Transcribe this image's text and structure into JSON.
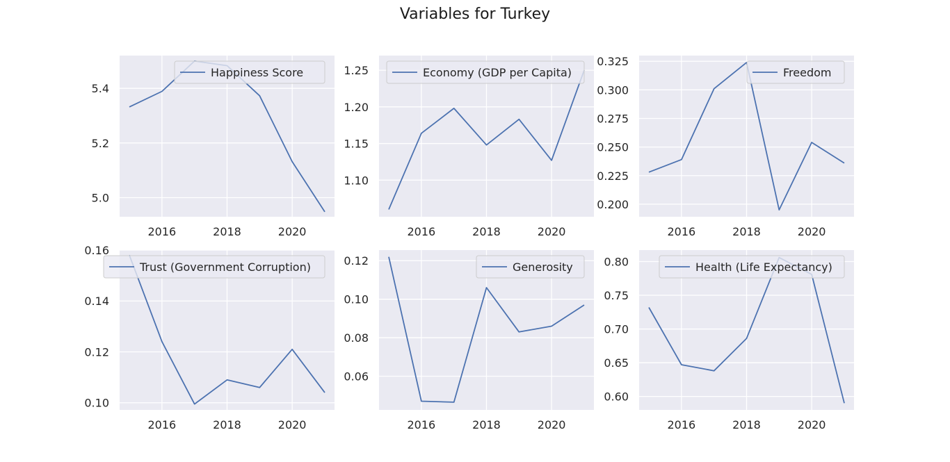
{
  "figure": {
    "title": "Variables for Turkey"
  },
  "colors": {
    "background": "#eaeaf2",
    "grid": "#ffffff",
    "line": "#4c72b0",
    "text": "#262626"
  },
  "chart_data": [
    {
      "type": "line",
      "title": "",
      "x": [
        2015,
        2016,
        2017,
        2018,
        2019,
        2020,
        2021
      ],
      "series": [
        {
          "name": "Happiness Score",
          "values": [
            5.332,
            5.389,
            5.5,
            5.483,
            5.373,
            5.132,
            4.948
          ]
        }
      ],
      "xlim": [
        2014.7,
        2021.3
      ],
      "ylim": [
        4.93,
        5.52
      ],
      "xticks": [
        2016,
        2018,
        2020
      ],
      "xtick_labels": [
        "2016",
        "2018",
        "2020"
      ],
      "yticks": [
        5.0,
        5.2,
        5.4
      ],
      "ytick_labels": [
        "5.0",
        "5.2",
        "5.4"
      ],
      "legend": "upper right",
      "grid": true
    },
    {
      "type": "line",
      "title": "",
      "x": [
        2015,
        2016,
        2017,
        2018,
        2019,
        2020,
        2021
      ],
      "series": [
        {
          "name": "Economy (GDP per Capita)",
          "values": [
            1.06,
            1.164,
            1.198,
            1.148,
            1.183,
            1.127,
            1.25
          ]
        }
      ],
      "xlim": [
        2014.7,
        2021.3
      ],
      "ylim": [
        1.05,
        1.27
      ],
      "xticks": [
        2016,
        2018,
        2020
      ],
      "xtick_labels": [
        "2016",
        "2018",
        "2020"
      ],
      "yticks": [
        1.1,
        1.15,
        1.2,
        1.25
      ],
      "ytick_labels": [
        "1.10",
        "1.15",
        "1.20",
        "1.25"
      ],
      "legend": "upper right",
      "grid": true
    },
    {
      "type": "line",
      "title": "",
      "x": [
        2015,
        2016,
        2017,
        2018,
        2019,
        2020,
        2021
      ],
      "series": [
        {
          "name": "Freedom",
          "values": [
            0.228,
            0.239,
            0.301,
            0.324,
            0.195,
            0.254,
            0.236
          ]
        }
      ],
      "xlim": [
        2014.7,
        2021.3
      ],
      "ylim": [
        0.189,
        0.33
      ],
      "xticks": [
        2016,
        2018,
        2020
      ],
      "xtick_labels": [
        "2016",
        "2018",
        "2020"
      ],
      "yticks": [
        0.2,
        0.225,
        0.25,
        0.275,
        0.3,
        0.325
      ],
      "ytick_labels": [
        "0.200",
        "0.225",
        "0.250",
        "0.275",
        "0.300",
        "0.325"
      ],
      "legend": "upper right",
      "grid": true
    },
    {
      "type": "line",
      "title": "",
      "x": [
        2015,
        2016,
        2017,
        2018,
        2019,
        2020,
        2021
      ],
      "series": [
        {
          "name": "Trust (Government Corruption)",
          "values": [
            0.158,
            0.124,
            0.0995,
            0.109,
            0.106,
            0.121,
            0.104
          ]
        }
      ],
      "xlim": [
        2014.7,
        2021.3
      ],
      "ylim": [
        0.0972,
        0.16
      ],
      "xticks": [
        2016,
        2018,
        2020
      ],
      "xtick_labels": [
        "2016",
        "2018",
        "2020"
      ],
      "yticks": [
        0.1,
        0.12,
        0.14,
        0.16
      ],
      "ytick_labels": [
        "0.10",
        "0.12",
        "0.14",
        "0.16"
      ],
      "legend": "upper right",
      "grid": true
    },
    {
      "type": "line",
      "title": "",
      "x": [
        2015,
        2016,
        2017,
        2018,
        2019,
        2020,
        2021
      ],
      "series": [
        {
          "name": "Generosity",
          "values": [
            0.122,
            0.047,
            0.0465,
            0.106,
            0.083,
            0.086,
            0.097
          ]
        }
      ],
      "xlim": [
        2014.7,
        2021.3
      ],
      "ylim": [
        0.0425,
        0.1255
      ],
      "xticks": [
        2016,
        2018,
        2020
      ],
      "xtick_labels": [
        "2016",
        "2018",
        "2020"
      ],
      "yticks": [
        0.06,
        0.08,
        0.1,
        0.12
      ],
      "ytick_labels": [
        "0.06",
        "0.08",
        "0.10",
        "0.12"
      ],
      "legend": "upper right",
      "grid": true
    },
    {
      "type": "line",
      "title": "",
      "x": [
        2015,
        2016,
        2017,
        2018,
        2019,
        2020,
        2021
      ],
      "series": [
        {
          "name": "Health (Life Expectancy)",
          "values": [
            0.732,
            0.647,
            0.638,
            0.686,
            0.806,
            0.781,
            0.59
          ]
        }
      ],
      "xlim": [
        2014.7,
        2021.3
      ],
      "ylim": [
        0.58,
        0.817
      ],
      "xticks": [
        2016,
        2018,
        2020
      ],
      "xtick_labels": [
        "2016",
        "2018",
        "2020"
      ],
      "yticks": [
        0.6,
        0.65,
        0.7,
        0.75,
        0.8
      ],
      "ytick_labels": [
        "0.60",
        "0.65",
        "0.70",
        "0.75",
        "0.80"
      ],
      "legend": "upper right",
      "grid": true
    }
  ]
}
